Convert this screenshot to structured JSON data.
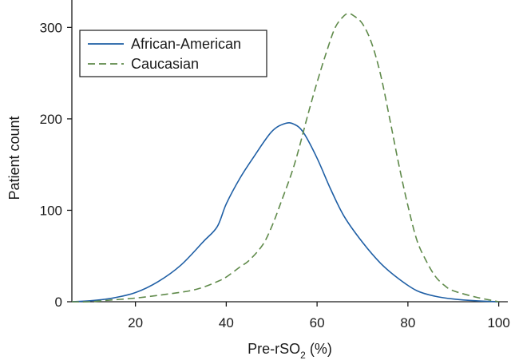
{
  "chart_data": {
    "type": "line",
    "title": "",
    "xlabel": "Pre-rSO",
    "xlabel_subscript": "2",
    "xlabel_suffix": " (%)",
    "ylabel": "Patient count",
    "xlim": [
      6,
      102
    ],
    "ylim": [
      0,
      330
    ],
    "x_ticks": [
      20,
      40,
      60,
      80,
      100
    ],
    "y_ticks": [
      0,
      100,
      200,
      300
    ],
    "grid": false,
    "legend_position": "top-left",
    "series": [
      {
        "name": "African-American",
        "color": "#1f5fa5",
        "style": "solid",
        "x": [
          6,
          10,
          15,
          20,
          25,
          30,
          35,
          38,
          40,
          43,
          46,
          50,
          53,
          55,
          57,
          60,
          63,
          66,
          70,
          74,
          78,
          82,
          86,
          90,
          95,
          100
        ],
        "y": [
          0,
          1,
          4,
          10,
          22,
          40,
          66,
          82,
          107,
          135,
          158,
          186,
          195,
          194,
          185,
          157,
          123,
          93,
          65,
          42,
          25,
          12,
          6,
          3,
          1,
          0
        ]
      },
      {
        "name": "Caucasian",
        "color": "#5f8a4a",
        "style": "dashed",
        "x": [
          6,
          10,
          15,
          20,
          25,
          28,
          32,
          35,
          38,
          40,
          43,
          45,
          48,
          50,
          52,
          55,
          58,
          60,
          62,
          64,
          66,
          67,
          68,
          70,
          72,
          74,
          76,
          78,
          80,
          82,
          84,
          86,
          88,
          90,
          95,
          100
        ],
        "y": [
          0,
          0,
          2,
          4,
          7,
          9,
          12,
          16,
          22,
          27,
          38,
          45,
          62,
          82,
          108,
          150,
          205,
          240,
          272,
          300,
          313,
          315,
          313,
          304,
          283,
          248,
          200,
          150,
          105,
          67,
          45,
          28,
          18,
          12,
          5,
          0
        ]
      }
    ]
  }
}
